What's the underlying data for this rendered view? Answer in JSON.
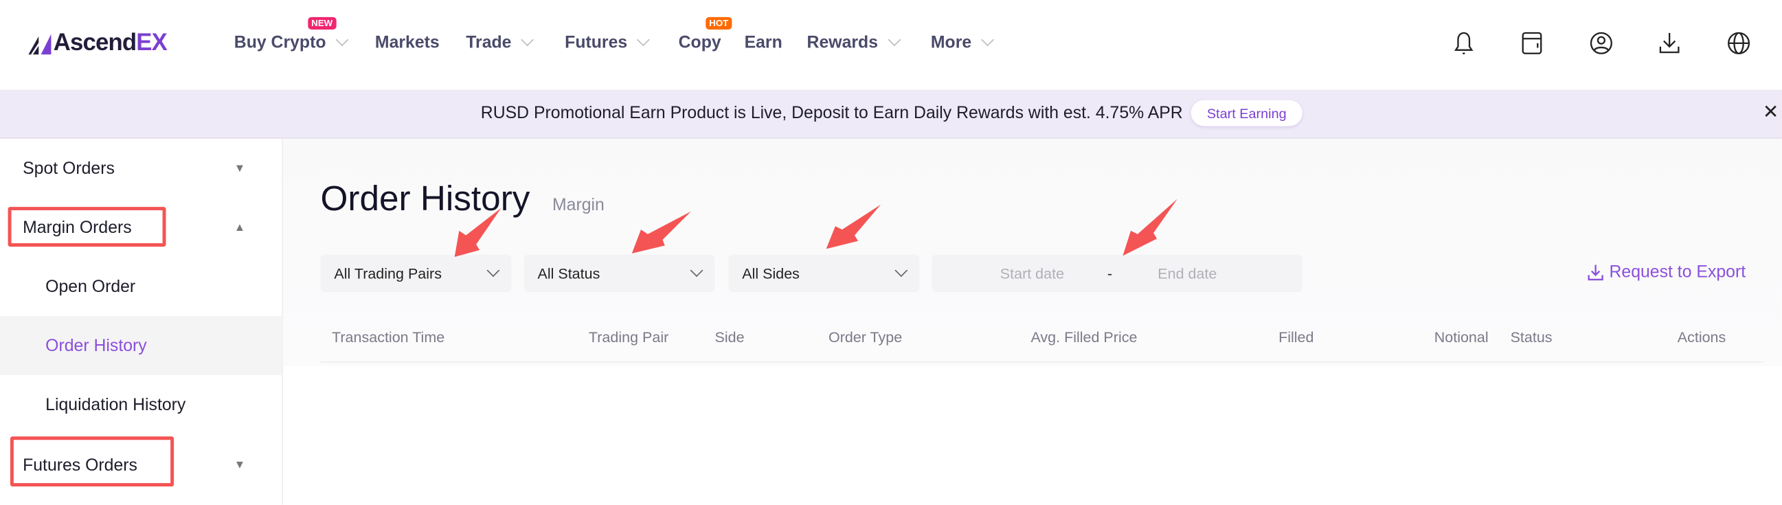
{
  "header": {
    "logo": {
      "text_main": "Ascend",
      "text_accent": "EX"
    },
    "nav": [
      {
        "label": "Buy Crypto",
        "dropdown": true,
        "badge": "NEW"
      },
      {
        "label": "Markets",
        "dropdown": false
      },
      {
        "label": "Trade",
        "dropdown": true
      },
      {
        "label": "Futures",
        "dropdown": true
      },
      {
        "label": "Copy",
        "dropdown": false,
        "badge": "HOT"
      },
      {
        "label": "Earn",
        "dropdown": false
      },
      {
        "label": "Rewards",
        "dropdown": true
      },
      {
        "label": "More",
        "dropdown": true
      }
    ],
    "icons": [
      "bell-icon",
      "wallet-icon",
      "user-icon",
      "download-icon",
      "globe-icon"
    ],
    "colors": {
      "brand": "#7b3fd1",
      "new_badge": "#f0266f",
      "hot_badge": "#ff6a00"
    }
  },
  "banner": {
    "text": "RUSD Promotional Earn Product is Live, Deposit to Earn Daily Rewards with est. 4.75% APR",
    "button": "Start Earning",
    "close": "✕"
  },
  "sidebar": {
    "items": [
      {
        "label": "Spot Orders",
        "level": 1,
        "expanded": false
      },
      {
        "label": "Margin Orders",
        "level": 1,
        "expanded": true,
        "highlighted": true
      },
      {
        "label": "Open Order",
        "level": 2
      },
      {
        "label": "Order History",
        "level": 2,
        "active": true
      },
      {
        "label": "Liquidation History",
        "level": 2
      },
      {
        "label": "Futures Orders",
        "level": 1,
        "expanded": false,
        "highlighted": true
      }
    ]
  },
  "main": {
    "title": "Order History",
    "subtitle": "Margin",
    "filters": {
      "trading_pairs": "All Trading Pairs",
      "status": "All Status",
      "sides": "All Sides",
      "start_date_placeholder": "Start date",
      "date_separator": "-",
      "end_date_placeholder": "End date"
    },
    "export_label": "Request to Export",
    "columns": [
      "Transaction Time",
      "Trading Pair",
      "Side",
      "Order Type",
      "Avg. Filled Price",
      "Filled",
      "Notional",
      "Status",
      "Actions"
    ],
    "rows": []
  },
  "annotations": {
    "color": "#f45454"
  }
}
